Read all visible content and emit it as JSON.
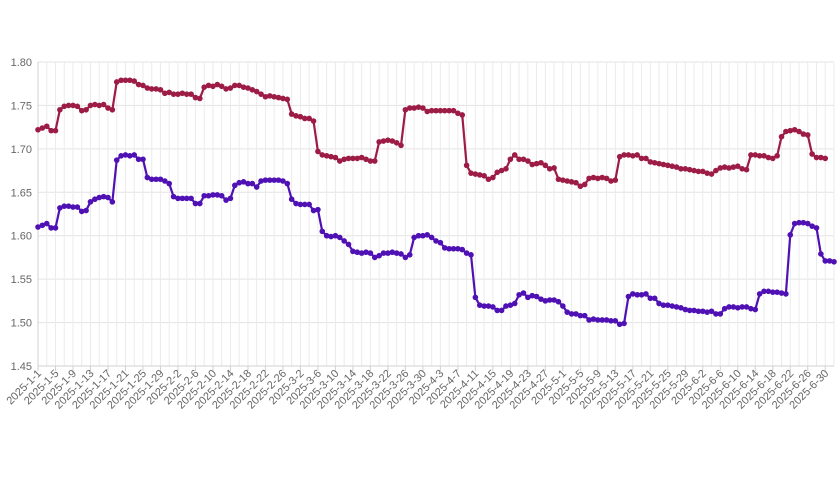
{
  "chart_data": {
    "type": "line",
    "title": "",
    "xlabel": "",
    "ylabel": "",
    "ylim": [
      1.45,
      1.8
    ],
    "y_ticks": [
      "1.45",
      "1.50",
      "1.55",
      "1.60",
      "1.65",
      "1.70",
      "1.75",
      "1.80"
    ],
    "grid": true,
    "legend": "none",
    "x_tick_labels": [
      "2025-1-1",
      "2025-1-5",
      "2025-1-9",
      "2025-1-13",
      "2025-1-17",
      "2025-1-21",
      "2025-1-25",
      "2025-1-29",
      "2025-2-2",
      "2025-2-6",
      "2025-2-10",
      "2025-2-14",
      "2025-2-18",
      "2025-2-22",
      "2025-2-26",
      "2025-3-2",
      "2025-3-6",
      "2025-3-10",
      "2025-3-14",
      "2025-3-18",
      "2025-3-22",
      "2025-3-26",
      "2025-3-30",
      "2025-4-3",
      "2025-4-7",
      "2025-4-11",
      "2025-4-15",
      "2025-4-19",
      "2025-4-23",
      "2025-4-27",
      "2025-5-1",
      "2025-5-5",
      "2025-5-9",
      "2025-5-13",
      "2025-5-17",
      "2025-5-21",
      "2025-5-25",
      "2025-5-29",
      "2025-6-2",
      "2025-6-6",
      "2025-6-10",
      "2025-6-14",
      "2025-6-18",
      "2025-6-22",
      "2025-6-26",
      "2025-6-30"
    ],
    "x_start": "2025-01-01",
    "x_end": "2025-07-02",
    "series": [
      {
        "color": "#9c1c46",
        "values": [
          1.722,
          1.724,
          1.726,
          1.721,
          1.721,
          1.745,
          1.749,
          1.75,
          1.75,
          1.749,
          1.744,
          1.745,
          1.75,
          1.751,
          1.75,
          1.751,
          1.747,
          1.745,
          1.777,
          1.779,
          1.779,
          1.779,
          1.778,
          1.774,
          1.773,
          1.77,
          1.769,
          1.769,
          1.768,
          1.764,
          1.765,
          1.763,
          1.763,
          1.764,
          1.763,
          1.763,
          1.759,
          1.758,
          1.771,
          1.773,
          1.772,
          1.774,
          1.772,
          1.769,
          1.77,
          1.773,
          1.773,
          1.771,
          1.77,
          1.768,
          1.766,
          1.763,
          1.76,
          1.761,
          1.76,
          1.759,
          1.758,
          1.757,
          1.74,
          1.738,
          1.737,
          1.735,
          1.735,
          1.732,
          1.697,
          1.693,
          1.692,
          1.691,
          1.69,
          1.686,
          1.688,
          1.689,
          1.689,
          1.689,
          1.69,
          1.688,
          1.686,
          1.686,
          1.708,
          1.709,
          1.71,
          1.709,
          1.707,
          1.704,
          1.745,
          1.747,
          1.747,
          1.748,
          1.747,
          1.743,
          1.744,
          1.744,
          1.744,
          1.744,
          1.744,
          1.744,
          1.741,
          1.739,
          1.681,
          1.672,
          1.671,
          1.67,
          1.669,
          1.665,
          1.667,
          1.673,
          1.675,
          1.677,
          1.688,
          1.693,
          1.688,
          1.688,
          1.686,
          1.682,
          1.683,
          1.684,
          1.681,
          1.677,
          1.678,
          1.665,
          1.664,
          1.663,
          1.662,
          1.661,
          1.657,
          1.659,
          1.666,
          1.667,
          1.666,
          1.667,
          1.666,
          1.663,
          1.664,
          1.691,
          1.693,
          1.693,
          1.692,
          1.693,
          1.689,
          1.689,
          1.685,
          1.684,
          1.683,
          1.682,
          1.681,
          1.68,
          1.679,
          1.677,
          1.677,
          1.676,
          1.675,
          1.674,
          1.674,
          1.672,
          1.671,
          1.675,
          1.678,
          1.679,
          1.678,
          1.679,
          1.68,
          1.677,
          1.676,
          1.693,
          1.693,
          1.692,
          1.692,
          1.69,
          1.689,
          1.692,
          1.714,
          1.72,
          1.721,
          1.722,
          1.72,
          1.717,
          1.716,
          1.694,
          1.69,
          1.69,
          1.689
        ]
      },
      {
        "color": "#4f10b4",
        "values": [
          1.61,
          1.612,
          1.614,
          1.609,
          1.609,
          1.632,
          1.634,
          1.634,
          1.633,
          1.633,
          1.628,
          1.629,
          1.639,
          1.642,
          1.644,
          1.645,
          1.644,
          1.639,
          1.687,
          1.692,
          1.693,
          1.692,
          1.693,
          1.688,
          1.688,
          1.667,
          1.665,
          1.665,
          1.665,
          1.663,
          1.66,
          1.645,
          1.643,
          1.643,
          1.643,
          1.643,
          1.637,
          1.637,
          1.646,
          1.646,
          1.647,
          1.647,
          1.646,
          1.641,
          1.643,
          1.658,
          1.661,
          1.662,
          1.66,
          1.66,
          1.656,
          1.663,
          1.664,
          1.664,
          1.664,
          1.664,
          1.663,
          1.66,
          1.642,
          1.637,
          1.636,
          1.636,
          1.636,
          1.629,
          1.63,
          1.605,
          1.6,
          1.599,
          1.6,
          1.598,
          1.594,
          1.59,
          1.582,
          1.581,
          1.58,
          1.581,
          1.58,
          1.575,
          1.577,
          1.58,
          1.58,
          1.581,
          1.58,
          1.579,
          1.575,
          1.578,
          1.598,
          1.6,
          1.6,
          1.601,
          1.598,
          1.594,
          1.592,
          1.586,
          1.585,
          1.585,
          1.585,
          1.584,
          1.58,
          1.578,
          1.529,
          1.52,
          1.519,
          1.519,
          1.518,
          1.514,
          1.514,
          1.519,
          1.52,
          1.522,
          1.532,
          1.534,
          1.529,
          1.531,
          1.53,
          1.527,
          1.525,
          1.526,
          1.526,
          1.524,
          1.519,
          1.512,
          1.51,
          1.51,
          1.508,
          1.508,
          1.503,
          1.504,
          1.503,
          1.503,
          1.503,
          1.502,
          1.502,
          1.498,
          1.499,
          1.53,
          1.533,
          1.532,
          1.532,
          1.533,
          1.528,
          1.528,
          1.522,
          1.52,
          1.52,
          1.519,
          1.518,
          1.517,
          1.515,
          1.514,
          1.514,
          1.513,
          1.513,
          1.512,
          1.513,
          1.51,
          1.51,
          1.516,
          1.518,
          1.518,
          1.517,
          1.518,
          1.518,
          1.516,
          1.515,
          1.533,
          1.536,
          1.536,
          1.535,
          1.535,
          1.534,
          1.533,
          1.601,
          1.614,
          1.615,
          1.615,
          1.614,
          1.611,
          1.609,
          1.579,
          1.571,
          1.571,
          1.57
        ]
      }
    ]
  }
}
